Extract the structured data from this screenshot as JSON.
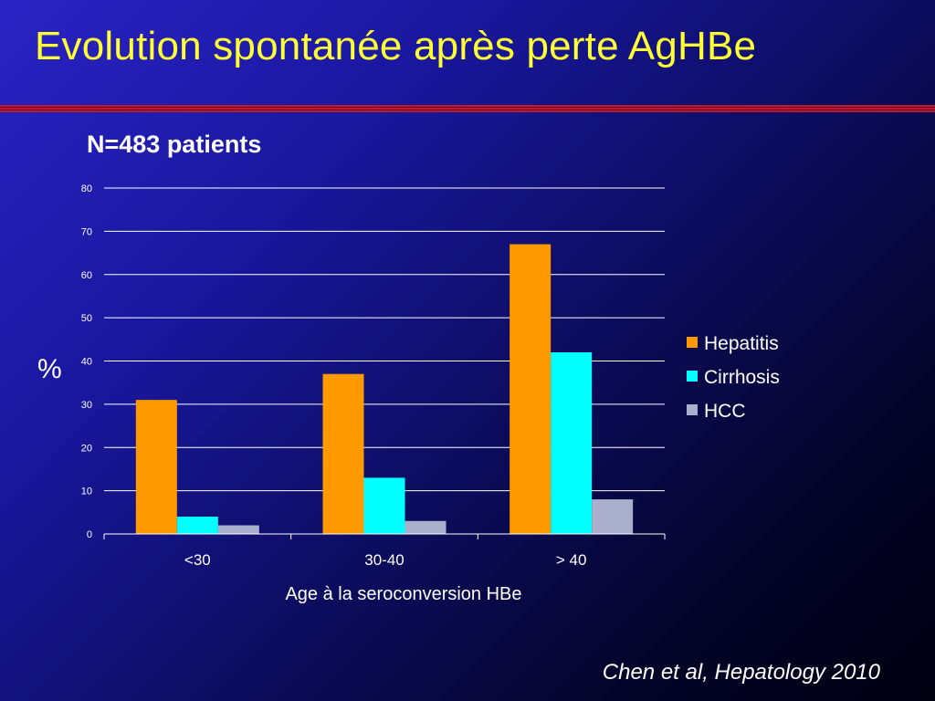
{
  "slide": {
    "title": "Evolution spontanée après perte AgHBe",
    "subtitle": "N=483 patients",
    "citation": "Chen et al, Hepatology 2010"
  },
  "chart_data": {
    "type": "bar",
    "categories": [
      "<30",
      "30-40",
      "> 40"
    ],
    "series": [
      {
        "name": "Hepatitis",
        "values": [
          31,
          37,
          67
        ],
        "color": "#ff9900"
      },
      {
        "name": "Cirrhosis",
        "values": [
          4,
          13,
          42
        ],
        "color": "#00ffff"
      },
      {
        "name": "HCC",
        "values": [
          2,
          3,
          8
        ],
        "color": "#aab0cc"
      }
    ],
    "xlabel": "Age à la seroconversion HBe",
    "ylabel": "%",
    "ylim": [
      0,
      80
    ],
    "yticks": [
      0,
      10,
      20,
      30,
      40,
      50,
      60,
      70,
      80
    ],
    "grid": true,
    "legend": "right"
  }
}
